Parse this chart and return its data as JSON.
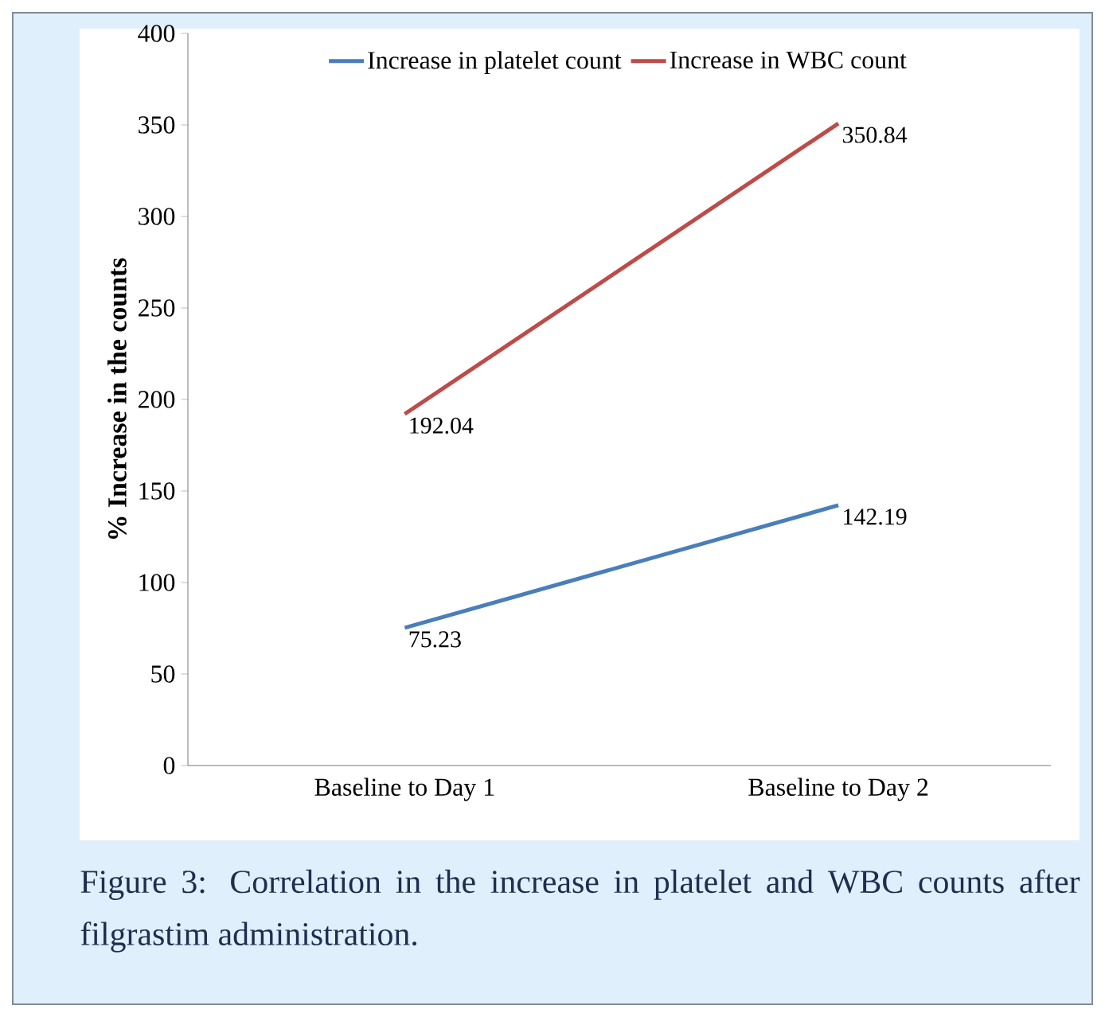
{
  "chart_data": {
    "type": "line",
    "categories": [
      "Baseline to Day 1",
      "Baseline to Day 2"
    ],
    "series": [
      {
        "name": "Increase in platelet count",
        "color": "#4a7ebb",
        "values": [
          75.23,
          142.19
        ]
      },
      {
        "name": "Increase in WBC count",
        "color": "#be4b48",
        "values": [
          192.04,
          350.84
        ]
      }
    ],
    "ylabel": "% Increase in the counts",
    "ylim": [
      0,
      400
    ],
    "yticks": [
      0,
      50,
      100,
      150,
      200,
      250,
      300,
      350,
      400
    ],
    "grid": false,
    "legend": "top",
    "marker": "none",
    "line_style": "solid",
    "data_labels": true,
    "annotations": [
      "Figure 3: Correlation in the increase in platelet and WBC counts after filgrastim administration."
    ]
  }
}
